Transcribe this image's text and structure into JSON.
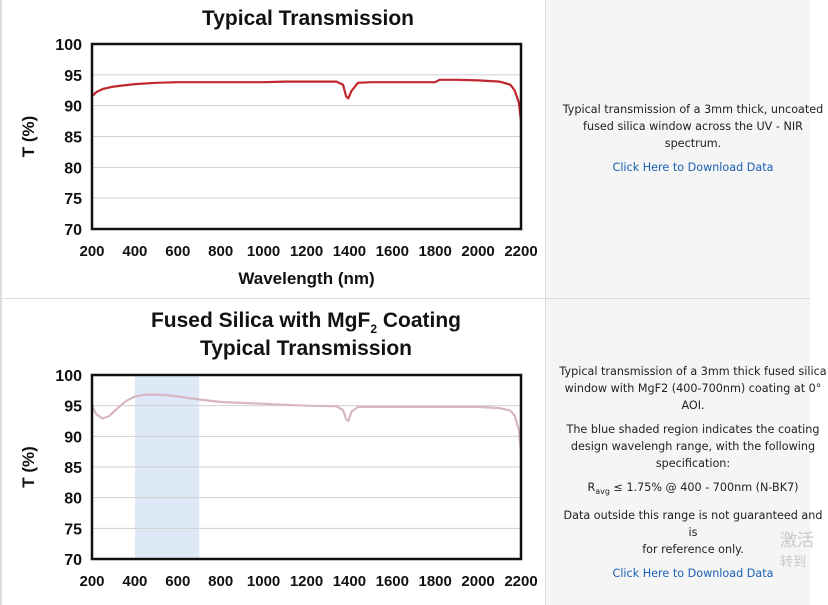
{
  "charts": [
    {
      "type": "line",
      "title_lines": [
        "Typical Transmission"
      ],
      "xlabel": "Wavelength (nm)",
      "ylabel": "T (%)",
      "xticks": [
        200,
        400,
        600,
        800,
        1000,
        1200,
        1400,
        1600,
        1800,
        2000,
        2200
      ],
      "yticks": [
        100,
        95,
        90,
        85,
        80,
        75,
        70
      ],
      "xlim": [
        200,
        2200
      ],
      "ylim": [
        70,
        100
      ],
      "grid": true,
      "series": [
        {
          "color": "#c0272d",
          "x": [
            200,
            220,
            250,
            300,
            400,
            500,
            600,
            700,
            800,
            900,
            1000,
            1100,
            1200,
            1300,
            1340,
            1370,
            1385,
            1395,
            1410,
            1440,
            1500,
            1600,
            1700,
            1800,
            1820,
            1900,
            2000,
            2050,
            2100,
            2150,
            2170,
            2190,
            2200
          ],
          "y": [
            91.5,
            92.2,
            92.7,
            93.1,
            93.5,
            93.7,
            93.8,
            93.8,
            93.8,
            93.8,
            93.8,
            93.9,
            93.9,
            93.9,
            93.9,
            93.4,
            91.5,
            91.2,
            92.4,
            93.7,
            93.8,
            93.8,
            93.8,
            93.8,
            94.2,
            94.2,
            94.1,
            94.0,
            93.9,
            93.4,
            92.5,
            90.5,
            87.5
          ]
        }
      ]
    },
    {
      "type": "line",
      "title_lines": [
        "Fused Silica with MgF",
        "2",
        " Coating",
        "Typical Transmission"
      ],
      "ylabel": "T (%)",
      "xticks": [
        200,
        400,
        600,
        800,
        1000,
        1200,
        1400,
        1600,
        1800,
        2000,
        2200
      ],
      "yticks": [
        100,
        95,
        90,
        85,
        80,
        75,
        70
      ],
      "xlim": [
        200,
        2200
      ],
      "ylim": [
        70,
        100
      ],
      "grid": true,
      "shaded_region": {
        "x": [
          400,
          700
        ],
        "color": "#dde9f6"
      },
      "series": [
        {
          "color": "#d8b7c4",
          "x": [
            200,
            220,
            250,
            280,
            320,
            360,
            400,
            450,
            500,
            550,
            600,
            700,
            800,
            1000,
            1200,
            1340,
            1370,
            1385,
            1395,
            1410,
            1440,
            1500,
            1600,
            1800,
            2000,
            2100,
            2150,
            2170,
            2190,
            2200
          ],
          "y": [
            95.0,
            93.6,
            92.9,
            93.3,
            94.6,
            95.8,
            96.5,
            96.8,
            96.8,
            96.7,
            96.5,
            96.0,
            95.6,
            95.3,
            95.0,
            94.9,
            94.3,
            92.8,
            92.5,
            94.0,
            94.8,
            94.8,
            94.8,
            94.8,
            94.8,
            94.6,
            94.2,
            93.4,
            91.0,
            87.5
          ]
        }
      ]
    }
  ],
  "desc_top": {
    "line1": "Typical transmission of a 3mm thick, uncoated",
    "line2": "fused silica window across the UV - NIR spectrum.",
    "link": "Click Here to Download Data"
  },
  "desc_bottom": {
    "line1": "Typical transmission of a 3mm thick fused silica",
    "line2": "window with MgF2 (400-700nm) coating at 0°",
    "line3": "AOI.",
    "line4": "The blue shaded region indicates the coating",
    "line5": "design wavelengh range, with the following",
    "line6": "specification:",
    "spec_r": "R",
    "spec_sub": "avg",
    "spec_rest": " ≤ 1.75% @ 400 - 700nm (N-BK7)",
    "line8": "Data outside this range is not guaranteed and is",
    "line9": "for reference only.",
    "link": "Click Here to Download Data"
  },
  "watermark": {
    "line1": "激活",
    "line2": "转到"
  },
  "colors": {
    "link": "#1a5fb4",
    "panel_bg": "#f5f5f5",
    "axis": "#111111",
    "grid": "#d0d0d0"
  }
}
